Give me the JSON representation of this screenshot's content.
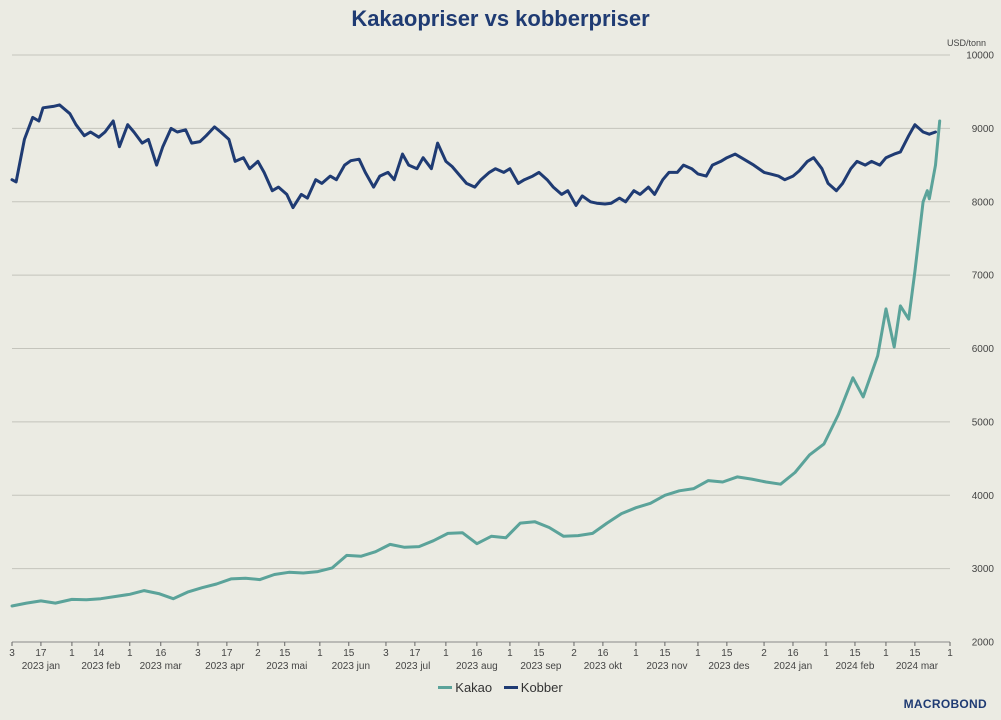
{
  "chart_data": {
    "type": "line",
    "title": "Kakaopriser vs kobberpriser",
    "unit_label": "USD/tonn",
    "ylim": [
      2000,
      10000
    ],
    "yticks": [
      2000,
      3000,
      4000,
      5000,
      6000,
      7000,
      8000,
      9000,
      10000
    ],
    "xlim": [
      "2023-01-03",
      "2024-04-01"
    ],
    "x_ticks": [
      {
        "date": "2023-01-03",
        "label": "3"
      },
      {
        "date": "2023-01-17",
        "label": "17"
      },
      {
        "date": "2023-02-01",
        "label": "1"
      },
      {
        "date": "2023-02-14",
        "label": "14"
      },
      {
        "date": "2023-03-01",
        "label": "1"
      },
      {
        "date": "2023-03-16",
        "label": "16"
      },
      {
        "date": "2023-04-03",
        "label": "3"
      },
      {
        "date": "2023-04-17",
        "label": "17"
      },
      {
        "date": "2023-05-02",
        "label": "2"
      },
      {
        "date": "2023-05-15",
        "label": "15"
      },
      {
        "date": "2023-06-01",
        "label": "1"
      },
      {
        "date": "2023-06-15",
        "label": "15"
      },
      {
        "date": "2023-07-03",
        "label": "3"
      },
      {
        "date": "2023-07-17",
        "label": "17"
      },
      {
        "date": "2023-08-01",
        "label": "1"
      },
      {
        "date": "2023-08-16",
        "label": "16"
      },
      {
        "date": "2023-09-01",
        "label": "1"
      },
      {
        "date": "2023-09-15",
        "label": "15"
      },
      {
        "date": "2023-10-02",
        "label": "2"
      },
      {
        "date": "2023-10-16",
        "label": "16"
      },
      {
        "date": "2023-11-01",
        "label": "1"
      },
      {
        "date": "2023-11-15",
        "label": "15"
      },
      {
        "date": "2023-12-01",
        "label": "1"
      },
      {
        "date": "2023-12-15",
        "label": "15"
      },
      {
        "date": "2024-01-02",
        "label": "2"
      },
      {
        "date": "2024-01-16",
        "label": "16"
      },
      {
        "date": "2024-02-01",
        "label": "1"
      },
      {
        "date": "2024-02-15",
        "label": "15"
      },
      {
        "date": "2024-03-01",
        "label": "1"
      },
      {
        "date": "2024-03-15",
        "label": "15"
      },
      {
        "date": "2024-04-01",
        "label": "1"
      }
    ],
    "x_month_labels": [
      {
        "date": "2023-01-17",
        "label": "2023 jan"
      },
      {
        "date": "2023-02-15",
        "label": "2023 feb"
      },
      {
        "date": "2023-03-16",
        "label": "2023 mar"
      },
      {
        "date": "2023-04-16",
        "label": "2023 apr"
      },
      {
        "date": "2023-05-16",
        "label": "2023 mai"
      },
      {
        "date": "2023-06-16",
        "label": "2023 jun"
      },
      {
        "date": "2023-07-16",
        "label": "2023 jul"
      },
      {
        "date": "2023-08-16",
        "label": "2023 aug"
      },
      {
        "date": "2023-09-16",
        "label": "2023 sep"
      },
      {
        "date": "2023-10-16",
        "label": "2023 okt"
      },
      {
        "date": "2023-11-16",
        "label": "2023 nov"
      },
      {
        "date": "2023-12-16",
        "label": "2023 des"
      },
      {
        "date": "2024-01-16",
        "label": "2024 jan"
      },
      {
        "date": "2024-02-15",
        "label": "2024 feb"
      },
      {
        "date": "2024-03-16",
        "label": "2024 mar"
      }
    ],
    "series": [
      {
        "name": "Kakao",
        "color": "#5ba39a",
        "points": [
          [
            "2023-01-03",
            2490
          ],
          [
            "2023-01-10",
            2530
          ],
          [
            "2023-01-17",
            2560
          ],
          [
            "2023-01-24",
            2530
          ],
          [
            "2023-02-01",
            2580
          ],
          [
            "2023-02-08",
            2575
          ],
          [
            "2023-02-15",
            2590
          ],
          [
            "2023-02-22",
            2620
          ],
          [
            "2023-03-01",
            2650
          ],
          [
            "2023-03-08",
            2700
          ],
          [
            "2023-03-15",
            2660
          ],
          [
            "2023-03-22",
            2590
          ],
          [
            "2023-03-29",
            2680
          ],
          [
            "2023-04-05",
            2740
          ],
          [
            "2023-04-12",
            2790
          ],
          [
            "2023-04-19",
            2860
          ],
          [
            "2023-04-26",
            2870
          ],
          [
            "2023-05-03",
            2850
          ],
          [
            "2023-05-10",
            2920
          ],
          [
            "2023-05-17",
            2950
          ],
          [
            "2023-05-24",
            2940
          ],
          [
            "2023-05-31",
            2960
          ],
          [
            "2023-06-07",
            3010
          ],
          [
            "2023-06-14",
            3180
          ],
          [
            "2023-06-21",
            3170
          ],
          [
            "2023-06-28",
            3230
          ],
          [
            "2023-07-05",
            3330
          ],
          [
            "2023-07-12",
            3290
          ],
          [
            "2023-07-19",
            3300
          ],
          [
            "2023-07-26",
            3380
          ],
          [
            "2023-08-02",
            3480
          ],
          [
            "2023-08-09",
            3490
          ],
          [
            "2023-08-16",
            3340
          ],
          [
            "2023-08-23",
            3440
          ],
          [
            "2023-08-30",
            3420
          ],
          [
            "2023-09-06",
            3620
          ],
          [
            "2023-09-13",
            3640
          ],
          [
            "2023-09-20",
            3560
          ],
          [
            "2023-09-27",
            3440
          ],
          [
            "2023-10-04",
            3450
          ],
          [
            "2023-10-11",
            3480
          ],
          [
            "2023-10-18",
            3620
          ],
          [
            "2023-10-25",
            3750
          ],
          [
            "2023-11-01",
            3830
          ],
          [
            "2023-11-08",
            3890
          ],
          [
            "2023-11-15",
            4000
          ],
          [
            "2023-11-22",
            4060
          ],
          [
            "2023-11-29",
            4090
          ],
          [
            "2023-12-06",
            4200
          ],
          [
            "2023-12-13",
            4180
          ],
          [
            "2023-12-20",
            4250
          ],
          [
            "2023-12-27",
            4220
          ],
          [
            "2024-01-03",
            4180
          ],
          [
            "2024-01-10",
            4150
          ],
          [
            "2024-01-17",
            4310
          ],
          [
            "2024-01-24",
            4550
          ],
          [
            "2024-01-31",
            4700
          ],
          [
            "2024-02-07",
            5100
          ],
          [
            "2024-02-14",
            5600
          ],
          [
            "2024-02-19",
            5340
          ],
          [
            "2024-02-26",
            5900
          ],
          [
            "2024-03-01",
            6540
          ],
          [
            "2024-03-05",
            6020
          ],
          [
            "2024-03-08",
            6580
          ],
          [
            "2024-03-12",
            6400
          ],
          [
            "2024-03-15",
            7050
          ],
          [
            "2024-03-19",
            8000
          ],
          [
            "2024-03-21",
            8150
          ],
          [
            "2024-03-22",
            8040
          ],
          [
            "2024-03-25",
            8500
          ],
          [
            "2024-03-27",
            9100
          ]
        ]
      },
      {
        "name": "Kobber",
        "color": "#1f3b73",
        "points": [
          [
            "2023-01-03",
            8300
          ],
          [
            "2023-01-05",
            8270
          ],
          [
            "2023-01-09",
            8850
          ],
          [
            "2023-01-13",
            9150
          ],
          [
            "2023-01-16",
            9100
          ],
          [
            "2023-01-18",
            9280
          ],
          [
            "2023-01-23",
            9300
          ],
          [
            "2023-01-26",
            9320
          ],
          [
            "2023-01-31",
            9200
          ],
          [
            "2023-02-03",
            9050
          ],
          [
            "2023-02-07",
            8900
          ],
          [
            "2023-02-10",
            8950
          ],
          [
            "2023-02-14",
            8880
          ],
          [
            "2023-02-17",
            8950
          ],
          [
            "2023-02-21",
            9100
          ],
          [
            "2023-02-24",
            8750
          ],
          [
            "2023-02-28",
            9050
          ],
          [
            "2023-03-03",
            8950
          ],
          [
            "2023-03-07",
            8800
          ],
          [
            "2023-03-10",
            8850
          ],
          [
            "2023-03-14",
            8500
          ],
          [
            "2023-03-17",
            8750
          ],
          [
            "2023-03-21",
            9000
          ],
          [
            "2023-03-24",
            8950
          ],
          [
            "2023-03-28",
            8980
          ],
          [
            "2023-03-31",
            8800
          ],
          [
            "2023-04-04",
            8820
          ],
          [
            "2023-04-07",
            8900
          ],
          [
            "2023-04-11",
            9020
          ],
          [
            "2023-04-14",
            8950
          ],
          [
            "2023-04-18",
            8850
          ],
          [
            "2023-04-21",
            8550
          ],
          [
            "2023-04-25",
            8600
          ],
          [
            "2023-04-28",
            8450
          ],
          [
            "2023-05-02",
            8550
          ],
          [
            "2023-05-05",
            8400
          ],
          [
            "2023-05-09",
            8150
          ],
          [
            "2023-05-12",
            8200
          ],
          [
            "2023-05-16",
            8100
          ],
          [
            "2023-05-19",
            7920
          ],
          [
            "2023-05-23",
            8100
          ],
          [
            "2023-05-26",
            8050
          ],
          [
            "2023-05-30",
            8300
          ],
          [
            "2023-06-02",
            8250
          ],
          [
            "2023-06-06",
            8350
          ],
          [
            "2023-06-09",
            8300
          ],
          [
            "2023-06-13",
            8500
          ],
          [
            "2023-06-16",
            8560
          ],
          [
            "2023-06-20",
            8580
          ],
          [
            "2023-06-23",
            8400
          ],
          [
            "2023-06-27",
            8200
          ],
          [
            "2023-06-30",
            8350
          ],
          [
            "2023-07-04",
            8400
          ],
          [
            "2023-07-07",
            8300
          ],
          [
            "2023-07-11",
            8650
          ],
          [
            "2023-07-14",
            8500
          ],
          [
            "2023-07-18",
            8450
          ],
          [
            "2023-07-21",
            8600
          ],
          [
            "2023-07-25",
            8450
          ],
          [
            "2023-07-28",
            8800
          ],
          [
            "2023-08-01",
            8550
          ],
          [
            "2023-08-04",
            8480
          ],
          [
            "2023-08-08",
            8350
          ],
          [
            "2023-08-11",
            8250
          ],
          [
            "2023-08-15",
            8200
          ],
          [
            "2023-08-18",
            8300
          ],
          [
            "2023-08-22",
            8400
          ],
          [
            "2023-08-25",
            8450
          ],
          [
            "2023-08-29",
            8400
          ],
          [
            "2023-09-01",
            8450
          ],
          [
            "2023-09-05",
            8250
          ],
          [
            "2023-09-08",
            8300
          ],
          [
            "2023-09-12",
            8350
          ],
          [
            "2023-09-15",
            8400
          ],
          [
            "2023-09-19",
            8300
          ],
          [
            "2023-09-22",
            8200
          ],
          [
            "2023-09-26",
            8100
          ],
          [
            "2023-09-29",
            8150
          ],
          [
            "2023-10-03",
            7950
          ],
          [
            "2023-10-06",
            8080
          ],
          [
            "2023-10-10",
            8000
          ],
          [
            "2023-10-13",
            7980
          ],
          [
            "2023-10-17",
            7970
          ],
          [
            "2023-10-20",
            7980
          ],
          [
            "2023-10-24",
            8050
          ],
          [
            "2023-10-27",
            8000
          ],
          [
            "2023-10-31",
            8150
          ],
          [
            "2023-11-03",
            8100
          ],
          [
            "2023-11-07",
            8200
          ],
          [
            "2023-11-10",
            8100
          ],
          [
            "2023-11-14",
            8300
          ],
          [
            "2023-11-17",
            8400
          ],
          [
            "2023-11-21",
            8400
          ],
          [
            "2023-11-24",
            8500
          ],
          [
            "2023-11-28",
            8450
          ],
          [
            "2023-12-01",
            8380
          ],
          [
            "2023-12-05",
            8350
          ],
          [
            "2023-12-08",
            8500
          ],
          [
            "2023-12-12",
            8550
          ],
          [
            "2023-12-15",
            8600
          ],
          [
            "2023-12-19",
            8650
          ],
          [
            "2023-12-22",
            8600
          ],
          [
            "2023-12-28",
            8500
          ],
          [
            "2024-01-02",
            8400
          ],
          [
            "2024-01-05",
            8380
          ],
          [
            "2024-01-09",
            8350
          ],
          [
            "2024-01-12",
            8300
          ],
          [
            "2024-01-16",
            8350
          ],
          [
            "2024-01-19",
            8420
          ],
          [
            "2024-01-23",
            8550
          ],
          [
            "2024-01-26",
            8600
          ],
          [
            "2024-01-30",
            8450
          ],
          [
            "2024-02-02",
            8250
          ],
          [
            "2024-02-06",
            8150
          ],
          [
            "2024-02-09",
            8250
          ],
          [
            "2024-02-13",
            8450
          ],
          [
            "2024-02-16",
            8550
          ],
          [
            "2024-02-20",
            8500
          ],
          [
            "2024-02-23",
            8550
          ],
          [
            "2024-02-27",
            8500
          ],
          [
            "2024-03-01",
            8600
          ],
          [
            "2024-03-05",
            8650
          ],
          [
            "2024-03-08",
            8680
          ],
          [
            "2024-03-12",
            8900
          ],
          [
            "2024-03-15",
            9050
          ],
          [
            "2024-03-19",
            8950
          ],
          [
            "2024-03-22",
            8920
          ],
          [
            "2024-03-25",
            8950
          ]
        ]
      }
    ]
  },
  "legend": {
    "items": [
      {
        "label": "Kakao",
        "color": "#5ba39a"
      },
      {
        "label": "Kobber",
        "color": "#1f3b73"
      }
    ]
  },
  "brand": "MACROBOND"
}
